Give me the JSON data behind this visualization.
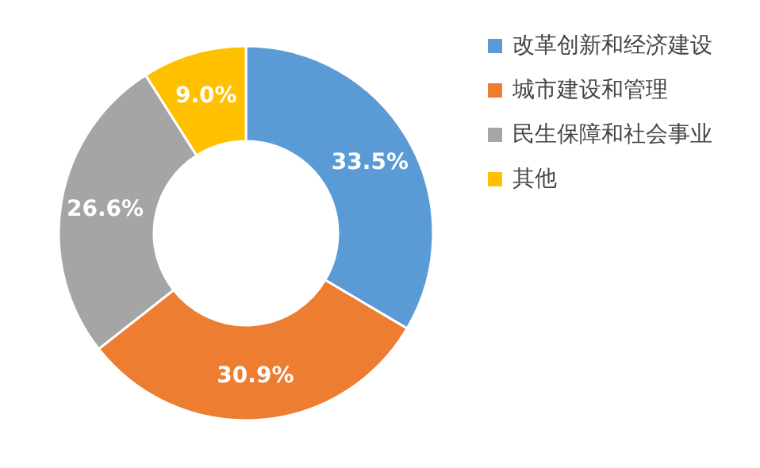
{
  "chart_data": {
    "type": "donut",
    "categories": [
      "改革创新和经济建设",
      "城市建设和管理",
      "民生保障和社会事业",
      "其他"
    ],
    "values": [
      33.5,
      30.9,
      26.6,
      9.0
    ],
    "value_labels": [
      "33.5%",
      "30.9%",
      "26.6%",
      "9.0%"
    ],
    "colors": [
      "#5b9bd5",
      "#ed7d31",
      "#a5a5a5",
      "#ffc000"
    ],
    "legend": "right"
  }
}
